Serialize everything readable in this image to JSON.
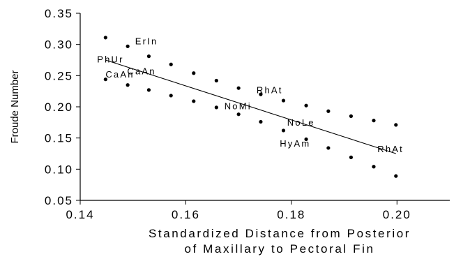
{
  "chart_data": {
    "type": "scatter",
    "xlabel_line1": "Standardized Distance from Posterior",
    "xlabel_line2": "of Maxillary to Pectoral Fin",
    "ylabel": "Froude Number",
    "xlim": [
      0.14,
      0.21
    ],
    "ylim": [
      0.05,
      0.35
    ],
    "x_ticks": [
      "0.14",
      "0.16",
      "0.18",
      "0.20"
    ],
    "x_tick_values": [
      0.14,
      0.16,
      0.18,
      0.2
    ],
    "y_ticks": [
      "0.05",
      "0.10",
      "0.15",
      "0.20",
      "0.25",
      "0.30",
      "0.35"
    ],
    "y_tick_values": [
      0.05,
      0.1,
      0.15,
      0.2,
      0.25,
      0.3,
      0.35
    ],
    "grid": false,
    "legend": "none",
    "points": [
      {
        "x": 0.1448,
        "y": 0.311
      },
      {
        "x": 0.1448,
        "y": 0.244
      },
      {
        "x": 0.149,
        "y": 0.297
      },
      {
        "x": 0.149,
        "y": 0.235
      },
      {
        "x": 0.153,
        "y": 0.281
      },
      {
        "x": 0.153,
        "y": 0.227
      },
      {
        "x": 0.1572,
        "y": 0.268
      },
      {
        "x": 0.1572,
        "y": 0.218
      },
      {
        "x": 0.1615,
        "y": 0.254
      },
      {
        "x": 0.1615,
        "y": 0.209
      },
      {
        "x": 0.1658,
        "y": 0.242
      },
      {
        "x": 0.1658,
        "y": 0.199
      },
      {
        "x": 0.17,
        "y": 0.23
      },
      {
        "x": 0.17,
        "y": 0.188
      },
      {
        "x": 0.1742,
        "y": 0.22
      },
      {
        "x": 0.1742,
        "y": 0.176
      },
      {
        "x": 0.1785,
        "y": 0.21
      },
      {
        "x": 0.1785,
        "y": 0.162
      },
      {
        "x": 0.1828,
        "y": 0.202
      },
      {
        "x": 0.1828,
        "y": 0.148
      },
      {
        "x": 0.187,
        "y": 0.193
      },
      {
        "x": 0.187,
        "y": 0.134
      },
      {
        "x": 0.1913,
        "y": 0.185
      },
      {
        "x": 0.1913,
        "y": 0.119
      },
      {
        "x": 0.1956,
        "y": 0.178
      },
      {
        "x": 0.1956,
        "y": 0.104
      },
      {
        "x": 0.1998,
        "y": 0.171
      },
      {
        "x": 0.1998,
        "y": 0.089
      }
    ],
    "trendline": {
      "x": [
        0.1448,
        0.1998
      ],
      "y": [
        0.275,
        0.125
      ]
    },
    "annotations": [
      {
        "text": "ErIn",
        "x": 0.1504,
        "y": 0.3
      },
      {
        "text": "PhUr",
        "x": 0.1432,
        "y": 0.271
      },
      {
        "text": "CaAn",
        "x": 0.1448,
        "y": 0.247
      },
      {
        "text": "CaAn",
        "x": 0.1489,
        "y": 0.252
      },
      {
        "text": "RhAt",
        "x": 0.1734,
        "y": 0.222
      },
      {
        "text": "NoMi",
        "x": 0.1673,
        "y": 0.196
      },
      {
        "text": "NoLe",
        "x": 0.1792,
        "y": 0.17
      },
      {
        "text": "HyAm",
        "x": 0.1778,
        "y": 0.136
      },
      {
        "text": "RhAt",
        "x": 0.1963,
        "y": 0.127
      }
    ]
  }
}
